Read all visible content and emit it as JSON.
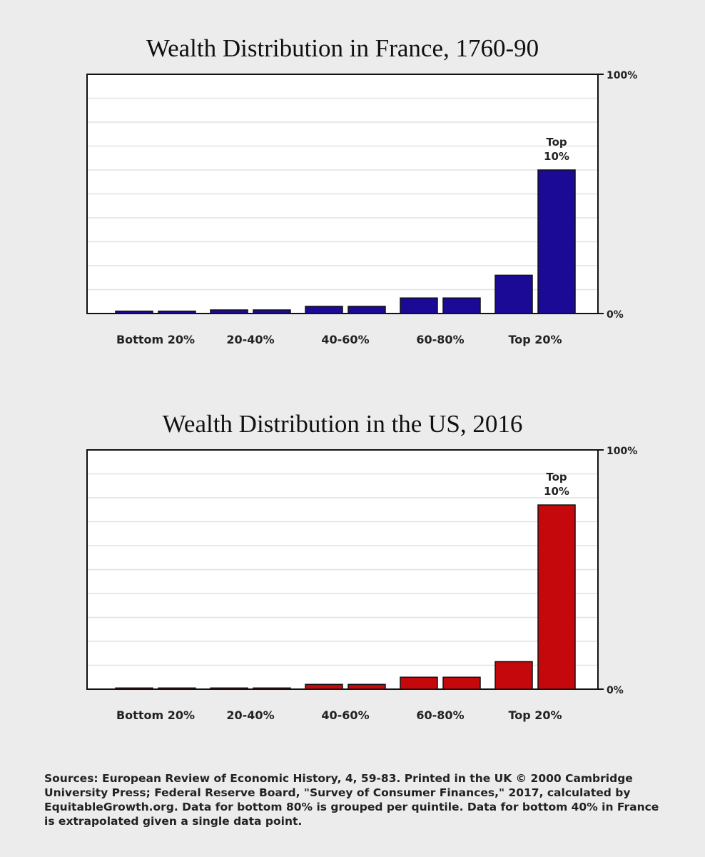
{
  "charts": [
    {
      "title": "Wealth Distribution in France, 1760-90",
      "chart_data": {
        "type": "bar",
        "title": "Wealth Distribution in France, 1760-90",
        "categories": [
          "Bottom 20%",
          "20-40%",
          "40-60%",
          "60-80%",
          "Top 20%"
        ],
        "bar_values": [
          1,
          1,
          1.5,
          1.5,
          3,
          3,
          6.5,
          6.5,
          16,
          60
        ],
        "ylim": [
          0,
          100
        ],
        "y_tick_labels": [
          "0%",
          "100%"
        ],
        "annotation": [
          "Top",
          "10%"
        ],
        "grid": true,
        "bar_color": "#1a0a96"
      }
    },
    {
      "title": "Wealth Distribution in the US, 2016",
      "chart_data": {
        "type": "bar",
        "title": "Wealth Distribution in the US, 2016",
        "categories": [
          "Bottom 20%",
          "20-40%",
          "40-60%",
          "60-80%",
          "Top 20%"
        ],
        "bar_values": [
          0.5,
          0.5,
          0.5,
          0.5,
          2,
          2,
          5,
          5,
          11.5,
          77
        ],
        "ylim": [
          0,
          100
        ],
        "y_tick_labels": [
          "0%",
          "100%"
        ],
        "annotation": [
          "Top",
          "10%"
        ],
        "grid": true,
        "bar_color": "#c4080c"
      }
    }
  ],
  "sources_text": "Sources: European Review of Economic History, 4, 59-83. Printed in the UK © 2000 Cambridge University Press; Federal Reserve Board, \"Survey of Consumer Finances,\" 2017, calculated by EquitableGrowth.org. Data for bottom 80% is grouped per quintile. Data for bottom 40% in France is extrapolated given a single data point."
}
